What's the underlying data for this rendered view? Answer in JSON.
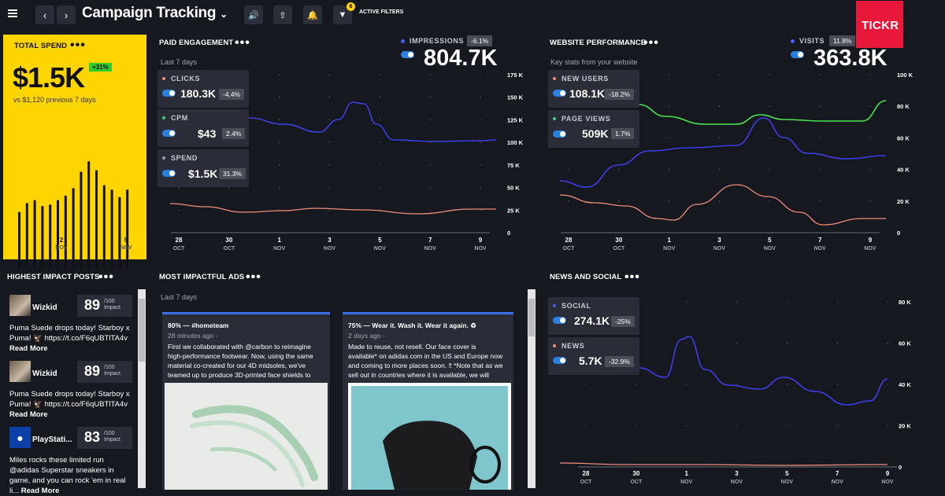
{
  "header": {
    "title": "Campaign Tracking",
    "filter_count": "6",
    "active_filters_label": "ACTIVE FILTERS",
    "logo_text": "TICKR"
  },
  "total_spend": {
    "title": "TOTAL SPEND",
    "value": "$1.5K",
    "change": "+31%",
    "comparison": "vs $1,120 previous 7 days",
    "x_labels": [
      {
        "day": "2",
        "month": "NOV"
      },
      {
        "day": "9",
        "month": "NOV"
      }
    ],
    "bars": [
      0.38,
      0.44,
      0.46,
      0.42,
      0.43,
      0.46,
      0.49,
      0.54,
      0.65,
      0.72,
      0.66,
      0.56,
      0.53,
      0.48,
      0.53
    ]
  },
  "paid_engagement": {
    "title": "PAID ENGAGEMENT",
    "subtitle": "Last 7 days",
    "headline_label": "IMPRESSIONS",
    "headline_change": "-6.1%",
    "headline_value": "804.7K",
    "metrics": [
      {
        "label": "CLICKS",
        "value": "180.3K",
        "change": "-4.4%",
        "color": "#f08c7c"
      },
      {
        "label": "CPM",
        "value": "$43",
        "change": "2.4%",
        "color": "#33d17a"
      },
      {
        "label": "SPEND",
        "value": "$1.5K",
        "change": "31.3%",
        "color": "#9aa0aa"
      }
    ],
    "y_ticks": [
      "175 K",
      "150 K",
      "125 K",
      "100 K",
      "75 K",
      "50 K",
      "25 K",
      "0"
    ],
    "x_ticks": [
      {
        "d": "28",
        "m": "OCT"
      },
      {
        "d": "30",
        "m": "OCT"
      },
      {
        "d": "1",
        "m": "NOV"
      },
      {
        "d": "3",
        "m": "NOV"
      },
      {
        "d": "5",
        "m": "NOV"
      },
      {
        "d": "7",
        "m": "NOV"
      },
      {
        "d": "9",
        "m": "NOV"
      }
    ]
  },
  "website_performance": {
    "title": "WEBSITE PERFORMANCE",
    "subtitle": "Key stats from your website",
    "headline_label": "VISITS",
    "headline_change": "11.8%",
    "headline_value": "363.8K",
    "metrics": [
      {
        "label": "NEW USERS",
        "value": "108.1K",
        "change": "-18.2%",
        "color": "#f08c7c"
      },
      {
        "label": "PAGE VIEWS",
        "value": "509K",
        "change": "1.7%",
        "color": "#33d17a"
      }
    ],
    "y_ticks": [
      "100 K",
      "80 K",
      "60 K",
      "40 K",
      "20 K",
      "0"
    ],
    "x_ticks": [
      {
        "d": "28",
        "m": "OCT"
      },
      {
        "d": "30",
        "m": "OCT"
      },
      {
        "d": "1",
        "m": "NOV"
      },
      {
        "d": "3",
        "m": "NOV"
      },
      {
        "d": "5",
        "m": "NOV"
      },
      {
        "d": "7",
        "m": "NOV"
      },
      {
        "d": "9",
        "m": "NOV"
      }
    ]
  },
  "highest_impact": {
    "title": "HIGHEST IMPACT POSTS",
    "posts": [
      {
        "name": "Wizkid",
        "score": "89",
        "score_unit": "/100",
        "score_label": "Impact",
        "text": "Puma Suede drops today! Starboy x Puma! 🦅 https://t.co/F6qUBTlTA4v",
        "more": "Read More",
        "avatar": "photo"
      },
      {
        "name": "Wizkid",
        "score": "89",
        "score_unit": "/100",
        "score_label": "Impact",
        "text": "Puma Suede drops today! Starboy x Puma! 🦅 https://t.co/F6qUBTlTA4v",
        "more": "Read More",
        "avatar": "photo"
      },
      {
        "name": "PlayStati...",
        "score": "83",
        "score_unit": "/100",
        "score_label": "Impact",
        "text": "Miles rocks these limited run @adidas Superstar sneakers in game, and you can rock 'em in real li...",
        "more": "Read More",
        "avatar": "playstation"
      }
    ]
  },
  "impactful_ads": {
    "title": "MOST IMPACTFUL ADS",
    "subtitle": "Last 7 days",
    "ads": [
      {
        "title": "80% — #hometeam",
        "time": "28 minutes ago -",
        "text": "First we collaborated with @carbon to reimagine high-performance footwear. Now, using the same material co-created for our 4D midsoles, we've teamed up to produce 3D-printed face shields to"
      },
      {
        "title": "75% — Wear it. Wash it. Wear it again. ♻",
        "time": "2 days ago -",
        "text": "Made to reuse, not resell. Our face cover is available* on adidas.com in the US and Europe now and coming to more places soon. ‼ *Note that as we sell out in countries where it is available, we will"
      }
    ]
  },
  "news_social": {
    "title": "NEWS AND SOCIAL",
    "metrics": [
      {
        "label": "SOCIAL",
        "value": "274.1K",
        "change": "-25%",
        "color": "#4a5cff"
      },
      {
        "label": "NEWS",
        "value": "5.7K",
        "change": "-32.9%",
        "color": "#f08c7c"
      }
    ],
    "y_ticks": [
      "80 K",
      "60 K",
      "40 K",
      "20 K",
      "0"
    ],
    "x_ticks": [
      {
        "d": "28",
        "m": "OCT"
      },
      {
        "d": "30",
        "m": "OCT"
      },
      {
        "d": "1",
        "m": "NOV"
      },
      {
        "d": "3",
        "m": "NOV"
      },
      {
        "d": "5",
        "m": "NOV"
      },
      {
        "d": "7",
        "m": "NOV"
      },
      {
        "d": "9",
        "m": "NOV"
      }
    ]
  },
  "colors": {
    "accent_yellow": "#ffd500",
    "blue": "#3b3fe6",
    "green": "#49e34e",
    "salmon": "#f08c7c",
    "logo_red": "#e8183a"
  }
}
